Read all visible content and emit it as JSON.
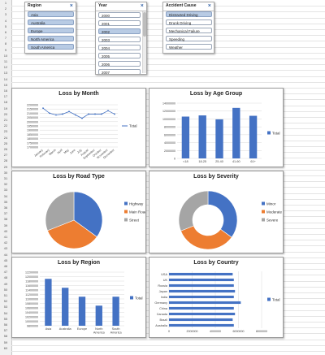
{
  "slicers": {
    "region": {
      "title": "Region",
      "clear_icon": "filter-clear-icon",
      "items": [
        "Asia",
        "Australia",
        "Europe",
        "North America",
        "South America"
      ]
    },
    "year": {
      "title": "Year",
      "clear_icon": "filter-clear-icon",
      "items": [
        "2000",
        "2001",
        "2002",
        "2003",
        "2004",
        "2005",
        "2006",
        "2007"
      ]
    },
    "cause": {
      "title": "Accident Cause",
      "clear_icon": "filter-clear-icon",
      "items": [
        "Distracted Driving",
        "Drunk Driving",
        "Mechanical Failure",
        "Speeding",
        "Weather"
      ]
    }
  },
  "colors": {
    "blue": "#4472c4",
    "orange": "#ed7d31",
    "gray": "#a5a5a5",
    "selected": "#b8cbe4"
  },
  "chart_data": [
    {
      "type": "line",
      "title": "Loss by Month",
      "categories": [
        "January",
        "February",
        "March",
        "April",
        "May",
        "June",
        "July",
        "August",
        "September",
        "October",
        "November",
        "December"
      ],
      "series": [
        {
          "name": "Total",
          "values": [
            2160000,
            2100000,
            2080000,
            2090000,
            2120000,
            2080000,
            2040000,
            2090000,
            2090000,
            2090000,
            2130000,
            2090000
          ]
        }
      ],
      "ylim": [
        1700000,
        2200000
      ],
      "yticks": [
        "1700000",
        "1750000",
        "1800000",
        "1850000",
        "1900000",
        "1950000",
        "2000000",
        "2050000",
        "2100000",
        "2150000",
        "2200000"
      ],
      "grid": true,
      "legend": "right"
    },
    {
      "type": "bar",
      "title": "Loss by Age Group",
      "categories": [
        "<18",
        "18-25",
        "25-40",
        "41-60",
        "61+"
      ],
      "series": [
        {
          "name": "Total",
          "values": [
            10600000,
            10900000,
            9900000,
            12800000,
            10800000
          ]
        }
      ],
      "ylim": [
        0,
        14000000
      ],
      "yticks": [
        "0",
        "2000000",
        "4000000",
        "6000000",
        "8000000",
        "10000000",
        "12000000",
        "14000000"
      ],
      "grid": true,
      "legend": "right"
    },
    {
      "type": "pie",
      "title": "Loss by Road Type",
      "labels": [
        "Highway",
        "Main Road",
        "Street"
      ],
      "values": [
        35,
        34,
        31
      ],
      "legend": "right"
    },
    {
      "type": "pie",
      "title": "Loss by Severity",
      "labels": [
        "Minor",
        "Moderate",
        "Severe"
      ],
      "values": [
        35,
        34,
        31
      ],
      "legend": "right",
      "donut": true
    },
    {
      "type": "bar",
      "title": "Loss by Region",
      "categories": [
        "Asia",
        "Australia",
        "Europe",
        "North America",
        "South America"
      ],
      "series": [
        {
          "name": "Total",
          "values": [
            11900000,
            11500000,
            11100000,
            10700000,
            11100000
          ]
        }
      ],
      "ylim": [
        9800000,
        12200000
      ],
      "yticks": [
        "9800000",
        "10000000",
        "10200000",
        "10400000",
        "10600000",
        "10800000",
        "11000000",
        "11200000",
        "11400000",
        "11600000",
        "11800000",
        "12000000",
        "12200000"
      ],
      "grid": true,
      "legend": "right"
    },
    {
      "type": "bar",
      "orientation": "horizontal",
      "title": "Loss by Country",
      "categories": [
        "USA",
        "UK",
        "Russia",
        "Japan",
        "India",
        "Germany",
        "China",
        "Canada",
        "Brazil",
        "Australia"
      ],
      "series": [
        {
          "name": "Total",
          "values": [
            5500000,
            5600000,
            5600000,
            5700000,
            5600000,
            6200000,
            5600000,
            5700000,
            5500000,
            5600000
          ]
        }
      ],
      "xlim": [
        0,
        8000000
      ],
      "xticks": [
        "0",
        "2000000",
        "4000000",
        "6000000",
        "8000000"
      ],
      "grid": true,
      "legend": "right"
    }
  ]
}
